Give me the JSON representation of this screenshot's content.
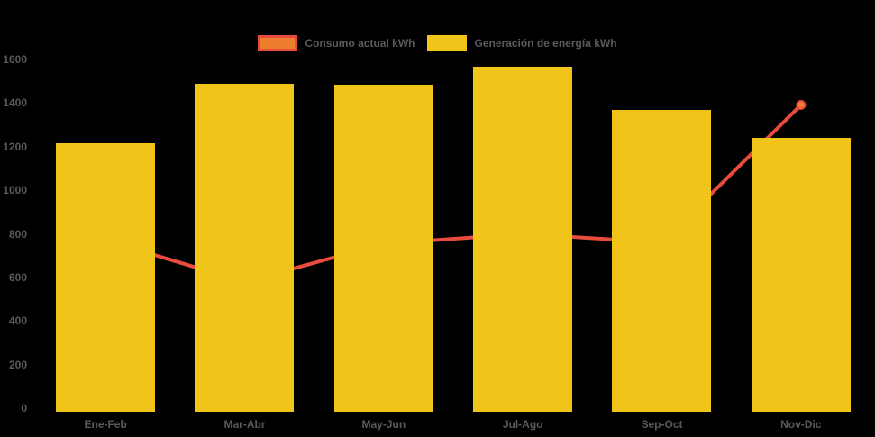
{
  "chart_data": {
    "type": "bar",
    "title": "",
    "categories": [
      "Ene-Feb",
      "Mar-Abr",
      "May-Jun",
      "Jul-Ago",
      "Sep-Oct",
      "Nov-Dic"
    ],
    "series": [
      {
        "name": "Generación de energía kWh",
        "type": "bar",
        "color": "#F0C419",
        "values": [
          1230,
          1500,
          1495,
          1580,
          1380,
          1255
        ]
      },
      {
        "name": "Consumo actual kWh",
        "type": "line",
        "color": "#E74C3C",
        "marker_fill": "#EE7E2E",
        "marker_stroke": "#E74C3C",
        "values": [
          780,
          590,
          765,
          810,
          770,
          1400
        ]
      }
    ],
    "xlabel": "",
    "ylabel": "",
    "ylim": [
      0,
      1600
    ],
    "y_ticks": [
      0,
      200,
      400,
      600,
      800,
      1000,
      1200,
      1400,
      1600
    ],
    "grid": false,
    "legend_position": "top-center",
    "background": "#000000",
    "text_color": "#5A5A5A"
  },
  "legend": {
    "items": [
      {
        "id": "consumo",
        "label": "Consumo actual kWh",
        "fill": "#EE7E2E",
        "border": "#E74C3C"
      },
      {
        "id": "generacion",
        "label": "Generación de energía kWh",
        "fill": "#F0C419",
        "border": "#F0C419"
      }
    ]
  }
}
